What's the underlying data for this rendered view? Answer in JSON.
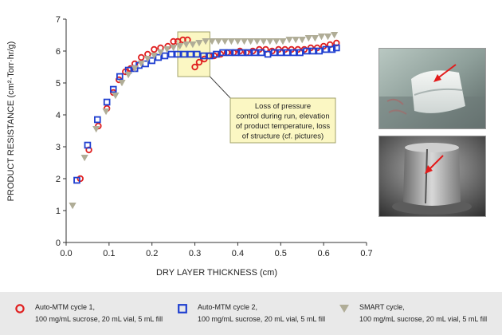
{
  "chart_data": {
    "type": "scatter",
    "xlabel": "DRY LAYER THICKNESS (cm)",
    "ylabel": "PRODUCT RESISTANCE (cm²·Torr·hr/g)",
    "xlim": [
      0,
      0.7
    ],
    "ylim": [
      0,
      7
    ],
    "x_ticks": [
      "0.0",
      "0.1",
      "0.2",
      "0.3",
      "0.4",
      "0.5",
      "0.6",
      "0.7"
    ],
    "y_ticks": [
      "0",
      "1",
      "2",
      "3",
      "4",
      "5",
      "6",
      "7"
    ],
    "grid": false,
    "legend_position": "bottom",
    "annotation": {
      "lines": [
        "Loss of pressure",
        "control during run, elevation",
        "of product temperature, loss",
        "of structure (cf. pictures)"
      ],
      "x_range": [
        0.26,
        0.335
      ],
      "y_range": [
        5.2,
        6.6
      ]
    },
    "series": [
      {
        "name": "Auto-MTM cycle 1,",
        "name_line2": "100 mg/mL sucrose, 20 mL vial, 5 mL fill",
        "marker": "circle",
        "color": "#e02020",
        "points": [
          [
            0.033,
            2.0
          ],
          [
            0.053,
            2.9
          ],
          [
            0.075,
            3.65
          ],
          [
            0.095,
            4.2
          ],
          [
            0.11,
            4.7
          ],
          [
            0.123,
            5.1
          ],
          [
            0.138,
            5.35
          ],
          [
            0.15,
            5.45
          ],
          [
            0.16,
            5.6
          ],
          [
            0.175,
            5.8
          ],
          [
            0.19,
            5.9
          ],
          [
            0.205,
            6.05
          ],
          [
            0.22,
            6.1
          ],
          [
            0.237,
            6.15
          ],
          [
            0.25,
            6.3
          ],
          [
            0.26,
            6.3
          ],
          [
            0.272,
            6.35
          ],
          [
            0.283,
            6.35
          ],
          [
            0.3,
            5.5
          ],
          [
            0.31,
            5.65
          ],
          [
            0.322,
            5.75
          ],
          [
            0.333,
            5.85
          ],
          [
            0.345,
            5.85
          ],
          [
            0.36,
            5.9
          ],
          [
            0.375,
            5.95
          ],
          [
            0.39,
            5.95
          ],
          [
            0.405,
            6.0
          ],
          [
            0.42,
            5.95
          ],
          [
            0.435,
            6.0
          ],
          [
            0.45,
            6.05
          ],
          [
            0.465,
            6.05
          ],
          [
            0.48,
            6.0
          ],
          [
            0.495,
            6.05
          ],
          [
            0.51,
            6.05
          ],
          [
            0.525,
            6.05
          ],
          [
            0.54,
            6.05
          ],
          [
            0.555,
            6.05
          ],
          [
            0.57,
            6.1
          ],
          [
            0.585,
            6.1
          ],
          [
            0.6,
            6.15
          ],
          [
            0.615,
            6.2
          ],
          [
            0.63,
            6.25
          ]
        ]
      },
      {
        "name": "Auto-MTM cycle 2,",
        "name_line2": "100 mg/mL sucrose, 20 mL vial, 5 mL fill",
        "marker": "square",
        "color": "#1f3fd0",
        "points": [
          [
            0.025,
            1.95
          ],
          [
            0.05,
            3.05
          ],
          [
            0.073,
            3.85
          ],
          [
            0.095,
            4.4
          ],
          [
            0.11,
            4.8
          ],
          [
            0.125,
            5.2
          ],
          [
            0.145,
            5.4
          ],
          [
            0.16,
            5.45
          ],
          [
            0.17,
            5.55
          ],
          [
            0.185,
            5.6
          ],
          [
            0.2,
            5.7
          ],
          [
            0.215,
            5.8
          ],
          [
            0.23,
            5.85
          ],
          [
            0.245,
            5.9
          ],
          [
            0.26,
            5.9
          ],
          [
            0.275,
            5.9
          ],
          [
            0.29,
            5.9
          ],
          [
            0.305,
            5.9
          ],
          [
            0.32,
            5.85
          ],
          [
            0.335,
            5.85
          ],
          [
            0.35,
            5.9
          ],
          [
            0.365,
            5.95
          ],
          [
            0.38,
            5.95
          ],
          [
            0.395,
            5.95
          ],
          [
            0.41,
            5.95
          ],
          [
            0.425,
            5.95
          ],
          [
            0.44,
            5.95
          ],
          [
            0.455,
            5.95
          ],
          [
            0.47,
            5.9
          ],
          [
            0.485,
            5.95
          ],
          [
            0.5,
            5.95
          ],
          [
            0.515,
            5.95
          ],
          [
            0.53,
            5.95
          ],
          [
            0.545,
            5.95
          ],
          [
            0.56,
            6.0
          ],
          [
            0.575,
            6.0
          ],
          [
            0.59,
            6.0
          ],
          [
            0.605,
            6.05
          ],
          [
            0.62,
            6.05
          ],
          [
            0.63,
            6.1
          ]
        ]
      },
      {
        "name": "SMART cycle,",
        "name_line2": "100 mg/mL sucrose, 20 mL vial, 5 mL fill",
        "marker": "triangle-down",
        "color": "#b0ad97",
        "points": [
          [
            0.015,
            1.15
          ],
          [
            0.043,
            2.65
          ],
          [
            0.07,
            3.55
          ],
          [
            0.093,
            4.1
          ],
          [
            0.115,
            4.6
          ],
          [
            0.13,
            5.0
          ],
          [
            0.145,
            5.25
          ],
          [
            0.16,
            5.45
          ],
          [
            0.175,
            5.6
          ],
          [
            0.19,
            5.75
          ],
          [
            0.205,
            5.85
          ],
          [
            0.22,
            5.95
          ],
          [
            0.235,
            6.05
          ],
          [
            0.25,
            6.1
          ],
          [
            0.265,
            6.15
          ],
          [
            0.28,
            6.2
          ],
          [
            0.295,
            6.2
          ],
          [
            0.31,
            6.25
          ],
          [
            0.325,
            6.3
          ],
          [
            0.34,
            6.3
          ],
          [
            0.355,
            6.3
          ],
          [
            0.37,
            6.3
          ],
          [
            0.385,
            6.3
          ],
          [
            0.4,
            6.3
          ],
          [
            0.415,
            6.3
          ],
          [
            0.43,
            6.3
          ],
          [
            0.445,
            6.3
          ],
          [
            0.46,
            6.3
          ],
          [
            0.475,
            6.3
          ],
          [
            0.49,
            6.3
          ],
          [
            0.505,
            6.3
          ],
          [
            0.52,
            6.35
          ],
          [
            0.535,
            6.35
          ],
          [
            0.55,
            6.35
          ],
          [
            0.565,
            6.4
          ],
          [
            0.58,
            6.4
          ],
          [
            0.595,
            6.45
          ],
          [
            0.61,
            6.45
          ],
          [
            0.625,
            6.5
          ]
        ]
      }
    ]
  },
  "colors": {
    "annotation_fill": "#fbf7c3",
    "annotation_stroke": "#a0a06a",
    "legend_bg": "#e9e9e9",
    "arrow": "#e31b1b"
  },
  "images": [
    {
      "name": "photo-cake-side",
      "depicts": "freeze-dried product cake in vial with red arrow"
    },
    {
      "name": "photo-cake-sem",
      "depicts": "electron micrograph of cake with red arrow"
    }
  ]
}
